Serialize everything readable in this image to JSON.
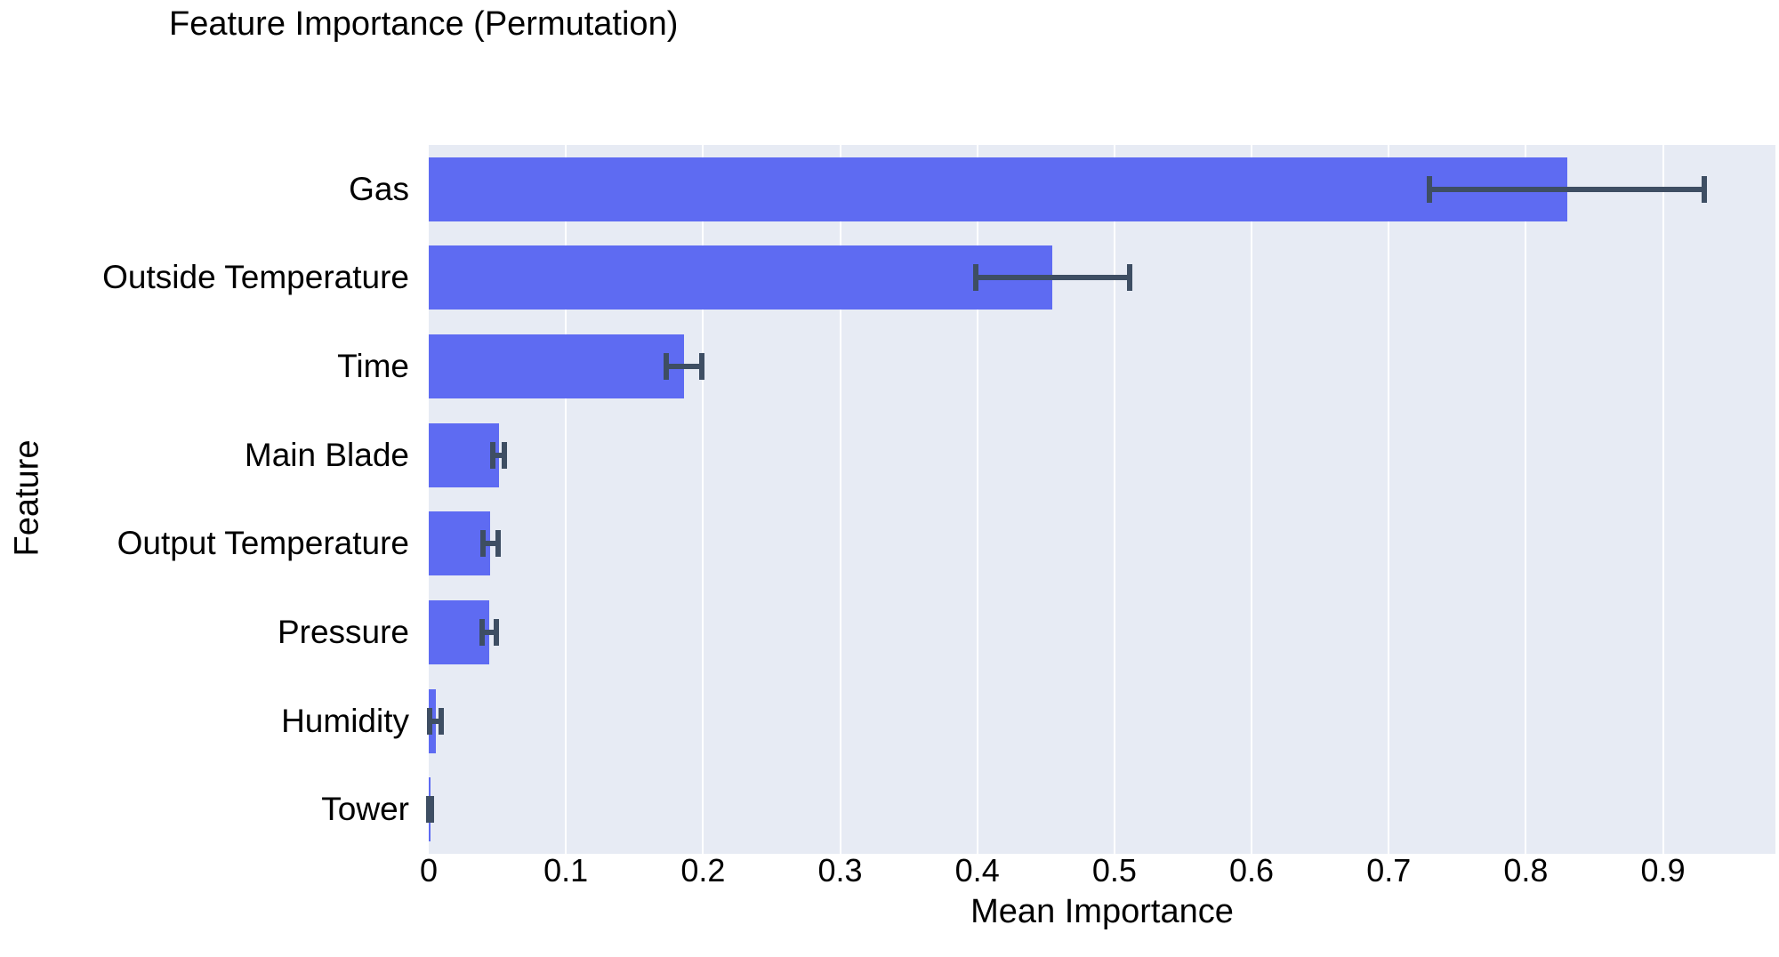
{
  "chart_data": {
    "type": "bar",
    "orientation": "horizontal",
    "title": "Feature Importance (Permutation)",
    "xlabel": "Mean Importance",
    "ylabel": "Feature",
    "categories": [
      "Gas",
      "Outside Temperature",
      "Time",
      "Main Blade",
      "Output Temperature",
      "Pressure",
      "Humidity",
      "Tower"
    ],
    "values": [
      0.83,
      0.455,
      0.186,
      0.051,
      0.045,
      0.044,
      0.005,
      0.001
    ],
    "errors": [
      0.1,
      0.056,
      0.013,
      0.004,
      0.0055,
      0.0053,
      0.0044,
      0.0012
    ],
    "x_ticks": [
      0,
      0.1,
      0.2,
      0.3,
      0.4,
      0.5,
      0.6,
      0.7,
      0.8,
      0.9
    ],
    "x_tick_labels": [
      "0",
      "0.1",
      "0.2",
      "0.3",
      "0.4",
      "0.5",
      "0.6",
      "0.7",
      "0.8",
      "0.9"
    ],
    "xlim": [
      0,
      0.982
    ],
    "grid": true,
    "legend": false,
    "colors": {
      "bar": "#5e6bf2",
      "error": "#3e4e63",
      "plot_background": "#e7ebf4",
      "gridline": "#ffffff",
      "figure_background": "#ffffff",
      "text": "#000000"
    }
  }
}
